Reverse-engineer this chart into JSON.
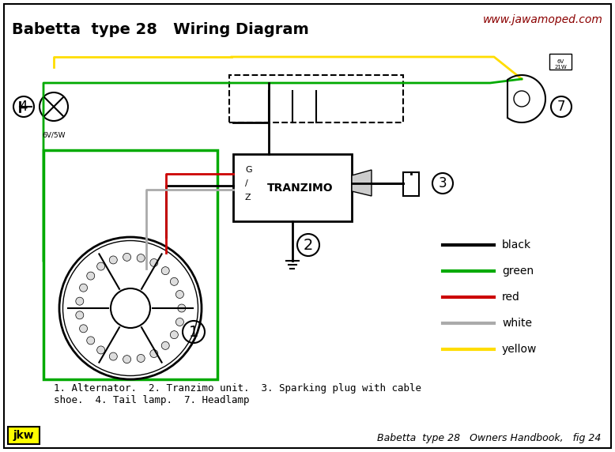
{
  "title": "Babetta  type 28   Wiring Diagram",
  "website": "www.jawamoped.com",
  "website_color": "#8B0000",
  "bg_color": "#FFFFFF",
  "title_fontsize": 14,
  "caption": "1. Alternator.  2. Tranzimo unit.  3. Sparking plug with cable\nshoe.  4. Tail lamp.  7. Headlamp",
  "bottom_right": "Babetta  type 28   Owners Handbook,   fig 24",
  "jkw_bg": "#FFFF00",
  "legend_items": [
    {
      "label": "black",
      "color": "#000000"
    },
    {
      "label": "green",
      "color": "#00AA00"
    },
    {
      "label": "red",
      "color": "#CC0000"
    },
    {
      "label": "white",
      "color": "#AAAAAA"
    },
    {
      "label": "yellow",
      "color": "#FFDD00"
    }
  ],
  "wire_colors": {
    "black": "#000000",
    "green": "#00AA00",
    "red": "#CC0000",
    "white": "#AAAAAA",
    "yellow": "#FFDD00"
  }
}
